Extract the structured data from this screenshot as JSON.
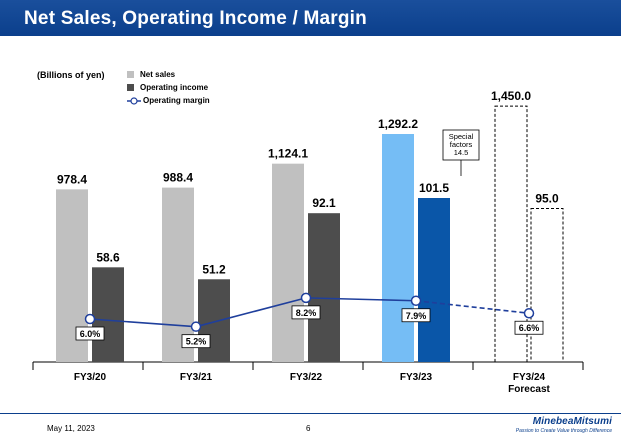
{
  "page": {
    "title": "Net Sales, Operating Income / Margin",
    "unit_label": "(Billions of yen)",
    "footer_date": "May 11, 2023",
    "page_number": "6",
    "logo_text": "MinebeaMitsumi",
    "logo_tagline": "Passion to Create Value through Difference"
  },
  "legend": {
    "net_sales": "Net sales",
    "operating_income": "Operating income",
    "operating_margin": "Operating margin"
  },
  "colors": {
    "header": "#0b3f8c",
    "net_sales": "#c0c0c0",
    "operating_income": "#4d4d4d",
    "net_sales_highlight": "#75bdf5",
    "operating_income_highlight": "#0a56a8",
    "margin_line": "#1f3f9c"
  },
  "chart_data": {
    "type": "bar",
    "categories": [
      "FY3/20",
      "FY3/21",
      "FY3/22",
      "FY3/23",
      "FY3/24"
    ],
    "category_sublabels": [
      "",
      "",
      "",
      "",
      "Forecast"
    ],
    "series": [
      {
        "name": "Net sales",
        "values": [
          978.4,
          988.4,
          1124.1,
          1292.2,
          1450.0
        ],
        "labels": [
          "978.4",
          "988.4",
          "1,124.1",
          "1,292.2",
          "1,450.0"
        ]
      },
      {
        "name": "Operating income",
        "values": [
          58.6,
          51.2,
          92.1,
          101.5,
          95.0
        ],
        "labels": [
          "58.6",
          "51.2",
          "92.1",
          "101.5",
          "95.0"
        ]
      },
      {
        "name": "Operating margin",
        "type": "line",
        "unit": "%",
        "values": [
          6.0,
          5.2,
          8.2,
          7.9,
          6.6
        ],
        "labels": [
          "6.0%",
          "5.2%",
          "8.2%",
          "7.9%",
          "6.6%"
        ]
      }
    ],
    "highlight_category": "FY3/23",
    "forecast_category": "FY3/24",
    "annotation": {
      "lines": [
        "Special",
        "factors",
        "14.5"
      ],
      "category": "FY3/23"
    }
  }
}
